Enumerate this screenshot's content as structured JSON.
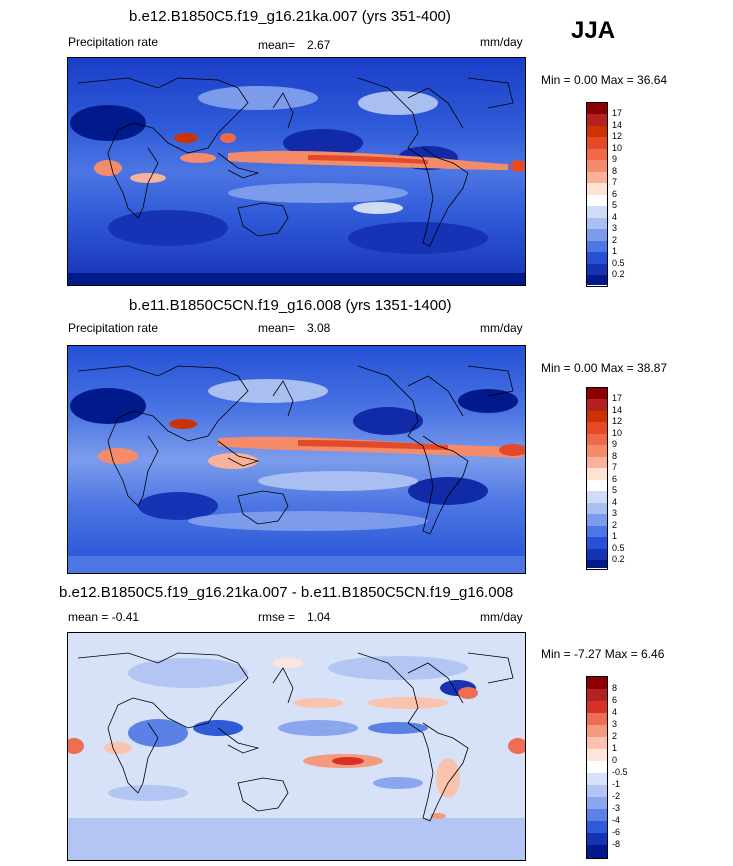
{
  "season": "JJA",
  "panels": [
    {
      "title": "b.e12.B1850C5.f19_g16.21ka.007 (yrs 351-400)",
      "left_label": "Precipitation rate",
      "mean_label": "mean=",
      "mean_value": "2.67",
      "units": "mm/day",
      "min_max": "Min =   0.00 Max =  36.64",
      "colorbar_labels": [
        "17",
        "14",
        "12",
        "10",
        "9",
        "8",
        "7",
        "6",
        "5",
        "4",
        "3",
        "2",
        "1",
        "0.5",
        "0.2"
      ]
    },
    {
      "title": "b.e11.B1850C5CN.f19_g16.008 (yrs 1351-1400)",
      "left_label": "Precipitation rate",
      "mean_label": "mean=",
      "mean_value": "3.08",
      "units": "mm/day",
      "min_max": "Min =   0.00 Max =  38.87",
      "colorbar_labels": [
        "17",
        "14",
        "12",
        "10",
        "9",
        "8",
        "7",
        "6",
        "5",
        "4",
        "3",
        "2",
        "1",
        "0.5",
        "0.2"
      ]
    },
    {
      "title": "b.e12.B1850C5.f19_g16.21ka.007 - b.e11.B1850C5CN.f19_g16.008",
      "left_label": "mean =  -0.41",
      "mean_label": "rmse =",
      "mean_value": "1.04",
      "units": "mm/day",
      "min_max": "Min =  -7.27 Max =   6.46",
      "colorbar_labels": [
        "8",
        "6",
        "4",
        "3",
        "2",
        "1",
        "0",
        "-0.5",
        "-1",
        "-2",
        "-3",
        "-4",
        "-6",
        "-8"
      ]
    }
  ],
  "colors": {
    "precip_scale": [
      "#8b0000",
      "#b22222",
      "#cc3300",
      "#e34a2a",
      "#f06a4a",
      "#f48c6c",
      "#f7b299",
      "#fde3d3",
      "#ffffff",
      "#d0dcf7",
      "#a9bff2",
      "#7c9ceb",
      "#4c76e3",
      "#2451d6",
      "#1632b5",
      "#001a8c"
    ],
    "diff_scale": [
      "#8b0000",
      "#b22222",
      "#d73027",
      "#ef6d53",
      "#f59a7d",
      "#f9c3ae",
      "#fde6dc",
      "#ffffff",
      "#d7e1f8",
      "#b3c6f3",
      "#8aa7ee",
      "#5a82e6",
      "#2f5ad8",
      "#1632b5",
      "#001a8c"
    ]
  }
}
